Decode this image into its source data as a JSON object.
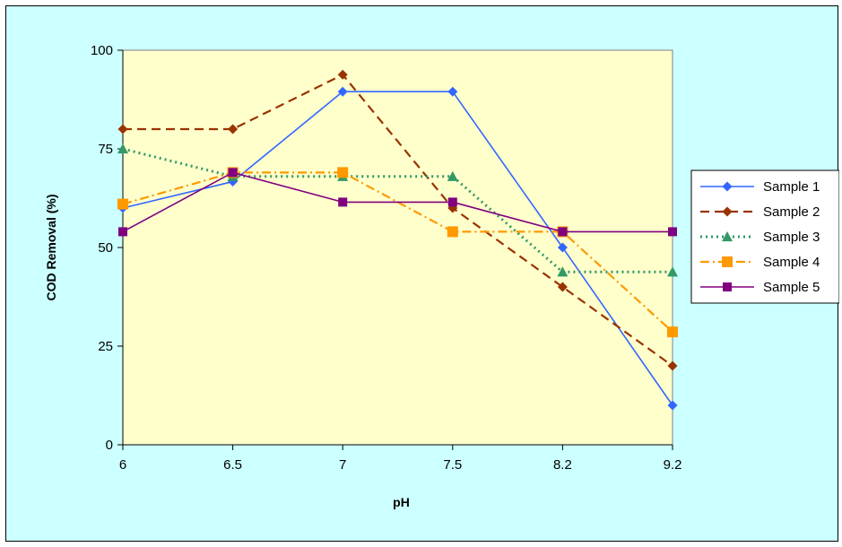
{
  "chart_data": {
    "type": "line",
    "title": "",
    "xlabel": "pH",
    "ylabel": "COD Removal (%)",
    "categories": [
      "6",
      "6.5",
      "7",
      "7.5",
      "8.2",
      "9.2"
    ],
    "ylim": [
      0,
      100
    ],
    "yticks": [
      "0",
      "25",
      "50",
      "75",
      "100"
    ],
    "grid": false,
    "legend_position": "right",
    "plot_background": "#ffffcc",
    "page_background": "#ccffff",
    "series": [
      {
        "name": "Sample 1",
        "values": [
          60,
          66.7,
          89.5,
          89.5,
          50,
          10
        ],
        "color": "#3366ff",
        "marker": "diamond",
        "dash": "solid"
      },
      {
        "name": "Sample 2",
        "values": [
          80,
          80,
          93.8,
          60,
          40,
          20
        ],
        "color": "#993300",
        "marker": "diamond",
        "dash": "dashed"
      },
      {
        "name": "Sample 3",
        "values": [
          75,
          68,
          68,
          68,
          43.8,
          43.8
        ],
        "color": "#339966",
        "marker": "triangle",
        "dash": "dotted"
      },
      {
        "name": "Sample 4",
        "values": [
          61,
          69,
          69,
          54,
          54,
          28.6
        ],
        "color": "#ff9900",
        "marker": "square",
        "dash": "dashdot"
      },
      {
        "name": "Sample 5",
        "values": [
          54,
          69,
          61.5,
          61.5,
          54,
          54
        ],
        "color": "#800080",
        "marker": "square",
        "dash": "solid"
      }
    ]
  }
}
